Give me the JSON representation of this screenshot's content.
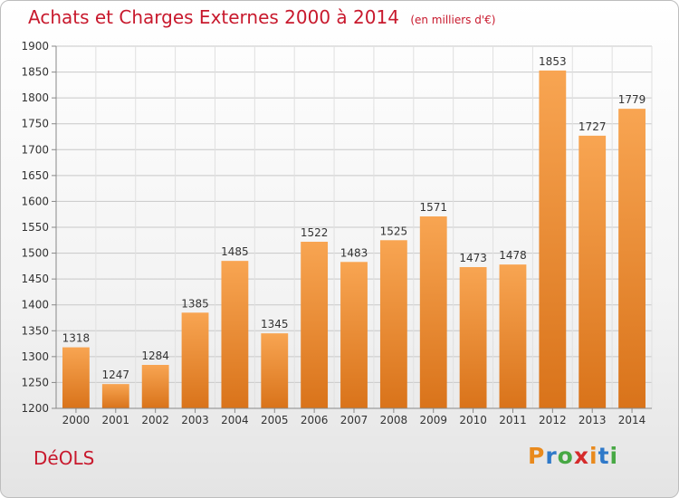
{
  "header": {
    "title": "Achats et Charges Externes 2000 à 2014",
    "unit": "(en milliers d'€)"
  },
  "footer": {
    "commune": "DéOLS",
    "brand_letters": [
      "P",
      "r",
      "o",
      "x",
      "i",
      "t",
      "i"
    ],
    "brand_colors": [
      "#e98a1d",
      "#2f79c9",
      "#47a844",
      "#d52b2b",
      "#e98a1d",
      "#2f79c9",
      "#47a844"
    ]
  },
  "colors": {
    "bar_light": "#f8a552",
    "bar_dark": "#d9731a",
    "grid": "#c8c8c8",
    "axis": "#888888",
    "title": "#c8192d"
  },
  "chart_data": {
    "type": "bar",
    "title": "Achats et Charges Externes 2000 à 2014",
    "subtitle": "(en milliers d'€)",
    "xlabel": "",
    "ylabel": "",
    "categories": [
      "2000",
      "2001",
      "2002",
      "2003",
      "2004",
      "2005",
      "2006",
      "2007",
      "2008",
      "2009",
      "2010",
      "2011",
      "2012",
      "2013",
      "2014"
    ],
    "values": [
      1318,
      1247,
      1284,
      1385,
      1485,
      1345,
      1522,
      1483,
      1525,
      1571,
      1473,
      1478,
      1853,
      1727,
      1779
    ],
    "ylim": [
      1200,
      1900
    ],
    "yticks": [
      1200,
      1250,
      1300,
      1350,
      1400,
      1450,
      1500,
      1550,
      1600,
      1650,
      1700,
      1750,
      1800,
      1850,
      1900
    ],
    "grid": true,
    "data_labels": true
  }
}
